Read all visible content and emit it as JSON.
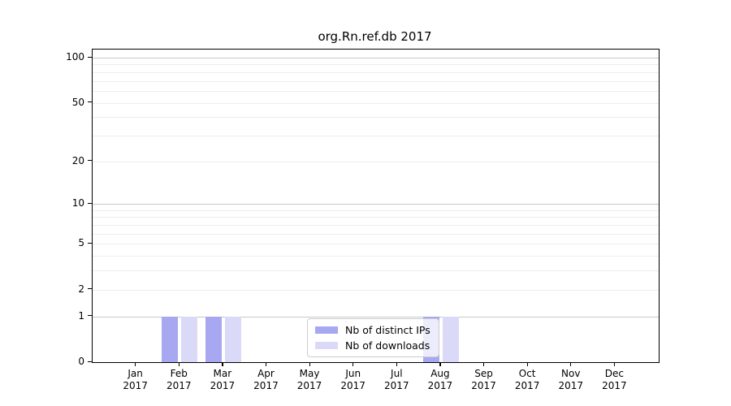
{
  "chart_data": {
    "type": "bar",
    "title": "org.Rn.ref.db 2017",
    "months": [
      "Jan",
      "Feb",
      "Mar",
      "Apr",
      "May",
      "Jun",
      "Jul",
      "Aug",
      "Sep",
      "Oct",
      "Nov",
      "Dec"
    ],
    "year": "2017",
    "series": [
      {
        "name": "Nb of distinct IPs",
        "color": "#a8a8f2",
        "values": [
          0,
          1,
          1,
          0,
          0,
          0,
          0,
          1,
          0,
          0,
          0,
          0
        ]
      },
      {
        "name": "Nb of downloads",
        "color": "#dadaf8",
        "values": [
          0,
          1,
          1,
          0,
          0,
          0,
          0,
          1,
          0,
          0,
          0,
          0
        ]
      }
    ],
    "y_scale": "log1p",
    "y_major_ticks": [
      0,
      1,
      2,
      5,
      10,
      20,
      50,
      100
    ],
    "y_minor_gridlines": [
      3,
      4,
      6,
      7,
      8,
      9,
      30,
      40,
      60,
      70,
      80,
      90
    ],
    "y_strong_gridlines": [
      1,
      10,
      100
    ],
    "ylim": [
      0,
      100
    ],
    "xlabel": "",
    "ylabel": "",
    "grid": "horizontal",
    "legend_position": "bottom-center-inside"
  },
  "colors": {
    "background": "#ffffff",
    "axis": "#000000",
    "grid_strong": "#c9c9c9",
    "grid_weak": "#ededed",
    "legend_border": "#cccccc"
  }
}
